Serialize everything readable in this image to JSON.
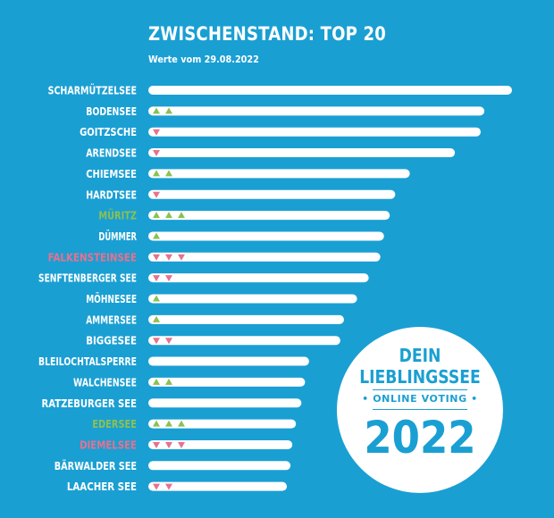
{
  "header": {
    "title": "ZWISCHENSTAND: TOP 20",
    "subtitle": "Werte vom 29.08.2022"
  },
  "badge": {
    "line1": "DEIN",
    "line2": "LIEBLINGSSEE",
    "line3": "• ONLINE VOTING •",
    "year": "2022"
  },
  "colors": {
    "background": "#1a9fd3",
    "bar": "#ffffff",
    "up": "#8cc152",
    "down": "#e8718d",
    "label_up": "#8cc152",
    "label_down": "#e8718d"
  },
  "chart_data": {
    "type": "bar",
    "orientation": "horizontal",
    "title": "ZWISCHENSTAND: TOP 20",
    "subtitle": "Werte vom 29.08.2022",
    "xlim": [
      0,
      100
    ],
    "grid": false,
    "categories": [
      "SCHARMÜTZELSEE",
      "BODENSEE",
      "GOITZSCHE",
      "ARENDSEE",
      "CHIEMSEE",
      "HARDTSEE",
      "MÜRITZ",
      "DÜMMER",
      "FALKENSTEINSEE",
      "SENFTENBERGER SEE",
      "MÖHNESEE",
      "AMMERSEE",
      "BIGGESEE",
      "BLEILOCHTALSPERRE",
      "WALCHENSEE",
      "RATZEBURGER SEE",
      "EDERSEE",
      "DIEMELSEE",
      "BÄRWALDER SEE",
      "LAACHER SEE"
    ],
    "values": [
      100,
      92.4,
      91.4,
      84.3,
      71.9,
      67.9,
      66.4,
      64.8,
      63.8,
      60.6,
      57.4,
      53.8,
      52.8,
      44.2,
      43.1,
      42.1,
      40.6,
      39.6,
      39.1,
      38.1
    ],
    "trend": [
      0,
      2,
      -1,
      -1,
      2,
      -1,
      3,
      1,
      -3,
      -2,
      1,
      1,
      -2,
      0,
      2,
      0,
      3,
      -3,
      0,
      -2
    ]
  }
}
